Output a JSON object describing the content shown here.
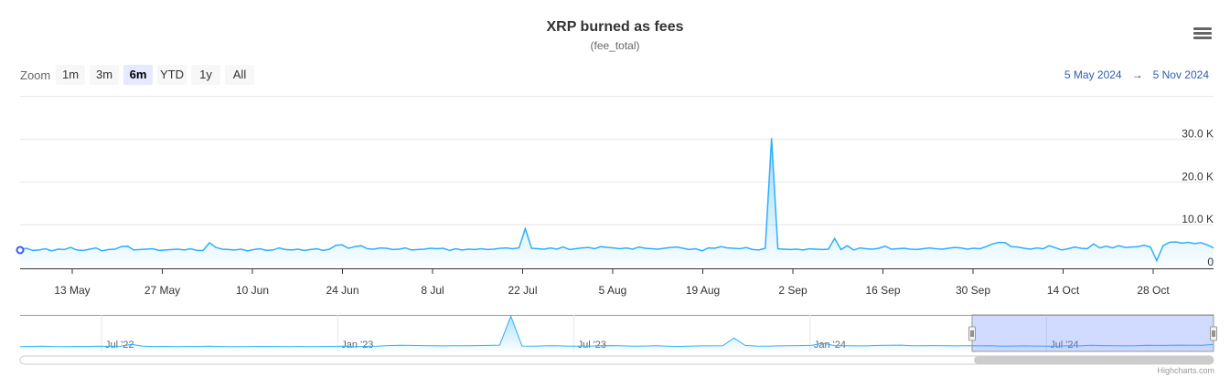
{
  "header": {
    "title": "XRP burned as fees",
    "subtitle": "(fee_total)"
  },
  "zoom": {
    "label": "Zoom",
    "buttons": [
      "1m",
      "3m",
      "6m",
      "YTD",
      "1y",
      "All"
    ],
    "selected": "6m"
  },
  "range": {
    "from": "5 May 2024",
    "arrow": "→",
    "to": "5 Nov 2024"
  },
  "credits": "Highcharts.com",
  "colors": {
    "series": "#2caffe",
    "accent": "#335cad",
    "navMask": "rgba(102,133,255,0.3)"
  },
  "chart_data": {
    "type": "area",
    "title": "XRP burned as fees",
    "subtitle": "(fee_total)",
    "x_start": "2024-05-05",
    "x_step_days": 2,
    "y_ticks": [
      "0",
      "10.0 K",
      "20.0 K",
      "30.0 K"
    ],
    "ylim": [
      0,
      40000
    ],
    "x_ticks": [
      "13 May",
      "27 May",
      "10 Jun",
      "24 Jun",
      "8 Jul",
      "22 Jul",
      "5 Aug",
      "19 Aug",
      "2 Sep",
      "16 Sep",
      "30 Sep",
      "14 Oct",
      "28 Oct"
    ],
    "values": [
      3000,
      3200,
      2700,
      2800,
      3100,
      2600,
      3000,
      2900,
      3400,
      2800,
      2700,
      3000,
      3300,
      2600,
      2900,
      3000,
      3600,
      3700,
      2800,
      2900,
      3000,
      3100,
      2700,
      2800,
      2900,
      3000,
      2800,
      3100,
      2700,
      2700,
      4500,
      3400,
      3000,
      2900,
      2800,
      3000,
      2600,
      2900,
      3100,
      2700,
      2800,
      3300,
      2900,
      2800,
      3000,
      2700,
      2900,
      3100,
      2700,
      3000,
      3900,
      4000,
      3200,
      3600,
      3800,
      3100,
      3000,
      3300,
      3200,
      2900,
      3000,
      3300,
      2800,
      2900,
      3000,
      3200,
      3100,
      3200,
      2700,
      3100,
      2800,
      3000,
      2900,
      3100,
      2900,
      3000,
      3200,
      3300,
      3100,
      3300,
      7800,
      3200,
      3100,
      3000,
      3300,
      3000,
      3500,
      2900,
      3100,
      3300,
      3400,
      3100,
      3600,
      3400,
      3300,
      3100,
      3300,
      3000,
      3500,
      3200,
      3100,
      3000,
      3200,
      3400,
      3500,
      3200,
      2900,
      3100,
      2600,
      3300,
      3200,
      3600,
      3300,
      3200,
      3100,
      3400,
      2900,
      2800,
      3200,
      29000,
      3100,
      3000,
      2900,
      3000,
      2800,
      3100,
      3000,
      2900,
      3000,
      5500,
      2900,
      3800,
      2800,
      3300,
      3100,
      3000,
      3200,
      3700,
      3000,
      3100,
      3200,
      3000,
      2900,
      3100,
      3300,
      3100,
      3000,
      3200,
      3400,
      3300,
      3000,
      3200,
      3100,
      3600,
      4200,
      4600,
      4500,
      3600,
      3500,
      3200,
      3000,
      3300,
      3100,
      3800,
      3300,
      2800,
      3100,
      3500,
      3200,
      3100,
      4200,
      3300,
      3700,
      3300,
      3800,
      3400,
      3500,
      3600,
      3900,
      3500,
      300,
      3800,
      4600,
      4700,
      4400,
      4600,
      4300,
      4500,
      4000,
      3300
    ],
    "navigator": {
      "x_ticks": [
        "Jul '22",
        "Jan '23",
        "Jul '23",
        "Jan '24",
        "Jul '24"
      ],
      "values": [
        2500,
        2800,
        3000,
        2700,
        2600,
        2800,
        2700,
        2900,
        2800,
        3000,
        4500,
        2900,
        2700,
        2800,
        2600,
        2700,
        2800,
        2900,
        2700,
        2600,
        2600,
        2700,
        2800,
        2700,
        2600,
        2700,
        2600,
        2700,
        2800,
        2900,
        2600,
        2800,
        2900,
        3500,
        3800,
        3600,
        3500,
        3300,
        3200,
        3400,
        3300,
        3500,
        3600,
        3900,
        29000,
        3100,
        3000,
        3200,
        3300,
        3100,
        3000,
        3100,
        3300,
        3500,
        3200,
        3000,
        3100,
        3300,
        3000,
        2800,
        3000,
        3200,
        3200,
        3300,
        10000,
        3600,
        3100,
        3000,
        3200,
        3300,
        3500,
        3800,
        5500,
        3500,
        3400,
        3200,
        3200,
        3600,
        3700,
        3900,
        3300,
        3400,
        3500,
        3300,
        3200,
        3300,
        3200,
        3300,
        3000,
        3100,
        3200,
        3100,
        3000,
        3100,
        3300,
        3200,
        3800,
        3500,
        3300,
        3200,
        3400,
        3800,
        3600,
        3700,
        3900,
        3800,
        3700,
        4500
      ],
      "selected_from": "5 May 2024",
      "selected_to": "5 Nov 2024"
    }
  }
}
